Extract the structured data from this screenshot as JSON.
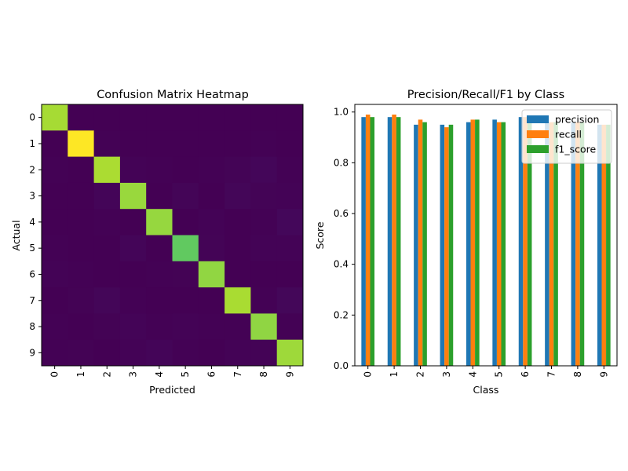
{
  "chart_data": [
    {
      "type": "heatmap",
      "title": "Confusion Matrix Heatmap",
      "xlabel": "Predicted",
      "ylabel": "Actual",
      "x_categories": [
        "0",
        "1",
        "2",
        "3",
        "4",
        "5",
        "6",
        "7",
        "8",
        "9"
      ],
      "y_categories": [
        "0",
        "1",
        "2",
        "3",
        "4",
        "5",
        "6",
        "7",
        "8",
        "9"
      ],
      "colormap": "viridis",
      "values": [
        [
          978,
          0,
          1,
          0,
          0,
          1,
          0,
          0,
          0,
          0
        ],
        [
          0,
          1125,
          3,
          1,
          0,
          1,
          1,
          1,
          3,
          0
        ],
        [
          3,
          1,
          986,
          8,
          2,
          1,
          3,
          9,
          17,
          2
        ],
        [
          0,
          0,
          14,
          954,
          0,
          12,
          0,
          15,
          9,
          6
        ],
        [
          1,
          0,
          2,
          0,
          948,
          0,
          6,
          1,
          3,
          21
        ],
        [
          2,
          0,
          0,
          14,
          1,
          852,
          9,
          1,
          7,
          6
        ],
        [
          6,
          3,
          1,
          0,
          3,
          5,
          939,
          0,
          1,
          0
        ],
        [
          1,
          5,
          16,
          2,
          1,
          0,
          0,
          983,
          2,
          18
        ],
        [
          3,
          0,
          5,
          10,
          3,
          6,
          2,
          4,
          937,
          4
        ],
        [
          4,
          5,
          1,
          7,
          13,
          3,
          1,
          7,
          6,
          962
        ]
      ]
    },
    {
      "type": "bar",
      "title": "Precision/Recall/F1 by Class",
      "xlabel": "Class",
      "ylabel": "Score",
      "categories": [
        "0",
        "1",
        "2",
        "3",
        "4",
        "5",
        "6",
        "7",
        "8",
        "9"
      ],
      "ylim": [
        0,
        1.03
      ],
      "yticks": [
        "0.0",
        "0.2",
        "0.4",
        "0.6",
        "0.8",
        "1.0"
      ],
      "legend_position": "top-right",
      "series": [
        {
          "name": "precision",
          "color": "#1f77b4",
          "values": [
            0.98,
            0.98,
            0.95,
            0.95,
            0.96,
            0.97,
            0.98,
            0.96,
            0.96,
            0.95
          ]
        },
        {
          "name": "recall",
          "color": "#ff7f0e",
          "values": [
            0.99,
            0.99,
            0.97,
            0.94,
            0.97,
            0.96,
            0.98,
            0.96,
            0.96,
            0.95
          ]
        },
        {
          "name": "f1_score",
          "color": "#2ca02c",
          "values": [
            0.98,
            0.98,
            0.96,
            0.95,
            0.97,
            0.96,
            0.98,
            0.96,
            0.96,
            0.95
          ]
        }
      ]
    }
  ]
}
